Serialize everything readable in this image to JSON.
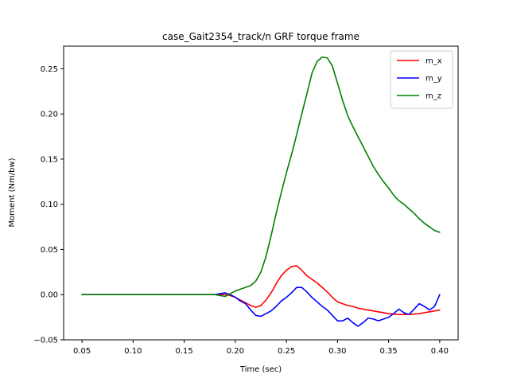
{
  "chart_data": {
    "type": "line",
    "title": "case_Gait2354_track/n GRF torque frame",
    "xlabel": "Time (sec)",
    "ylabel": "Moment (Nm/bw)",
    "xlim": [
      0.032,
      0.418
    ],
    "ylim": [
      -0.05,
      0.275
    ],
    "xticks": [
      0.05,
      0.1,
      0.15,
      0.2,
      0.25,
      0.3,
      0.35,
      0.4
    ],
    "xtick_labels": [
      "0.05",
      "0.10",
      "0.15",
      "0.20",
      "0.25",
      "0.30",
      "0.35",
      "0.40"
    ],
    "yticks": [
      -0.05,
      0.0,
      0.05,
      0.1,
      0.15,
      0.2,
      0.25
    ],
    "ytick_labels": [
      "−0.05",
      "0.00",
      "0.05",
      "0.10",
      "0.15",
      "0.20",
      "0.25"
    ],
    "grid": false,
    "legend_position": "top-right",
    "series": [
      {
        "name": "m_x",
        "color": "#ff0000",
        "x": [
          0.05,
          0.18,
          0.19,
          0.195,
          0.2,
          0.205,
          0.21,
          0.215,
          0.22,
          0.225,
          0.23,
          0.235,
          0.24,
          0.245,
          0.25,
          0.255,
          0.26,
          0.265,
          0.27,
          0.275,
          0.28,
          0.285,
          0.29,
          0.295,
          0.3,
          0.305,
          0.31,
          0.315,
          0.32,
          0.33,
          0.34,
          0.35,
          0.36,
          0.37,
          0.38,
          0.39,
          0.4
        ],
        "y": [
          0.0,
          0.0,
          0.0,
          -0.001,
          -0.003,
          -0.006,
          -0.009,
          -0.012,
          -0.014,
          -0.012,
          -0.006,
          0.002,
          0.012,
          0.021,
          0.027,
          0.031,
          0.032,
          0.027,
          0.021,
          0.017,
          0.013,
          0.008,
          0.003,
          -0.003,
          -0.008,
          -0.01,
          -0.012,
          -0.013,
          -0.015,
          -0.017,
          -0.019,
          -0.021,
          -0.022,
          -0.022,
          -0.021,
          -0.019,
          -0.017
        ]
      },
      {
        "name": "m_y",
        "color": "#0000ff",
        "x": [
          0.05,
          0.18,
          0.185,
          0.19,
          0.195,
          0.2,
          0.205,
          0.21,
          0.215,
          0.22,
          0.225,
          0.23,
          0.235,
          0.24,
          0.245,
          0.25,
          0.255,
          0.26,
          0.265,
          0.27,
          0.275,
          0.28,
          0.285,
          0.29,
          0.295,
          0.3,
          0.305,
          0.31,
          0.315,
          0.32,
          0.325,
          0.33,
          0.335,
          0.34,
          0.345,
          0.35,
          0.355,
          0.36,
          0.365,
          0.37,
          0.375,
          0.38,
          0.385,
          0.39,
          0.395,
          0.4
        ],
        "y": [
          0.0,
          0.0,
          0.001,
          0.002,
          0.0,
          -0.003,
          -0.007,
          -0.01,
          -0.017,
          -0.023,
          -0.024,
          -0.021,
          -0.018,
          -0.013,
          -0.007,
          -0.003,
          0.002,
          0.008,
          0.008,
          0.003,
          -0.003,
          -0.008,
          -0.013,
          -0.017,
          -0.023,
          -0.029,
          -0.029,
          -0.026,
          -0.031,
          -0.035,
          -0.031,
          -0.026,
          -0.027,
          -0.029,
          -0.027,
          -0.025,
          -0.021,
          -0.016,
          -0.02,
          -0.022,
          -0.016,
          -0.01,
          -0.013,
          -0.017,
          -0.013,
          0.0
        ]
      },
      {
        "name": "m_z",
        "color": "#008000",
        "x": [
          0.05,
          0.18,
          0.19,
          0.195,
          0.2,
          0.205,
          0.21,
          0.215,
          0.22,
          0.225,
          0.23,
          0.235,
          0.24,
          0.245,
          0.25,
          0.255,
          0.26,
          0.265,
          0.27,
          0.275,
          0.28,
          0.285,
          0.29,
          0.295,
          0.3,
          0.305,
          0.31,
          0.315,
          0.32,
          0.325,
          0.33,
          0.335,
          0.34,
          0.345,
          0.35,
          0.355,
          0.36,
          0.365,
          0.37,
          0.375,
          0.38,
          0.385,
          0.39,
          0.395,
          0.4
        ],
        "y": [
          0.0,
          0.0,
          -0.002,
          0.001,
          0.004,
          0.006,
          0.008,
          0.01,
          0.015,
          0.025,
          0.042,
          0.065,
          0.09,
          0.113,
          0.135,
          0.155,
          0.177,
          0.2,
          0.222,
          0.245,
          0.258,
          0.263,
          0.262,
          0.253,
          0.234,
          0.215,
          0.198,
          0.186,
          0.175,
          0.164,
          0.153,
          0.142,
          0.133,
          0.125,
          0.118,
          0.11,
          0.104,
          0.1,
          0.095,
          0.09,
          0.084,
          0.079,
          0.075,
          0.071,
          0.069
        ]
      }
    ]
  }
}
